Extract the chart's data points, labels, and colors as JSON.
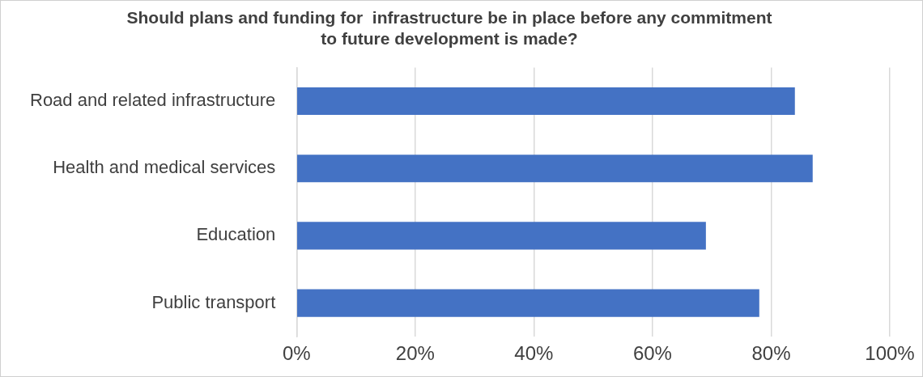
{
  "chart_data": {
    "type": "bar",
    "orientation": "horizontal",
    "title": "Should plans and funding for  infrastructure be in place before any commitment to future development is made?",
    "categories": [
      "Road and related infrastructure",
      "Health and medical services",
      "Education",
      "Public transport"
    ],
    "values": [
      84,
      87,
      69,
      78
    ],
    "color": "#4472c4",
    "xlim": [
      0,
      100
    ],
    "xticks": [
      {
        "value": 0,
        "label": "0%"
      },
      {
        "value": 20,
        "label": "20%"
      },
      {
        "value": 40,
        "label": "40%"
      },
      {
        "value": 60,
        "label": "60%"
      },
      {
        "value": 80,
        "label": "80%"
      },
      {
        "value": 100,
        "label": "100%"
      }
    ],
    "grid": "x",
    "legend": false
  }
}
